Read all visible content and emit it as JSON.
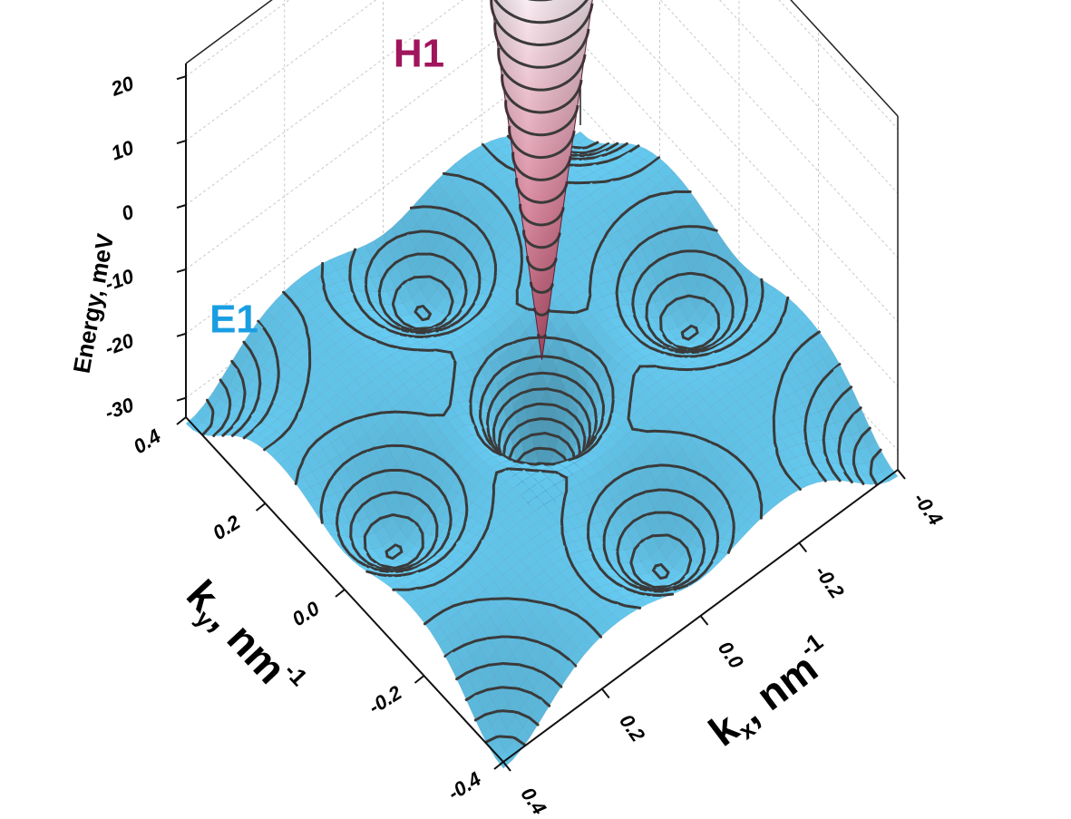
{
  "chart_data": {
    "type": "surface3d",
    "zlabel": "Energy, meV",
    "xlabel": {
      "symbol": "k",
      "subscript": "x",
      "unit": ", nm",
      "superscript": "-1"
    },
    "ylabel": {
      "symbol": "k",
      "subscript": "y",
      "unit": ", nm",
      "superscript": "-1"
    },
    "xlim": [
      -0.4,
      0.4
    ],
    "ylim": [
      -0.4,
      0.4
    ],
    "zlim": [
      -33,
      22
    ],
    "xticks": [
      -0.4,
      -0.2,
      {
        "value": 0,
        "label": "0.0"
      },
      0.2,
      0.4
    ],
    "yticks": [
      -0.4,
      -0.2,
      {
        "value": 0,
        "label": "0.0"
      },
      0.2,
      0.4
    ],
    "zticks": [
      -30,
      -20,
      -10,
      0,
      10,
      20
    ],
    "grid": true,
    "series": [
      {
        "name": "E1",
        "color": "#62c3e8",
        "label_color": "#1a9ee2"
      },
      {
        "name": "H1",
        "color": "#b8375a",
        "label_color": "#a0155c"
      }
    ]
  }
}
